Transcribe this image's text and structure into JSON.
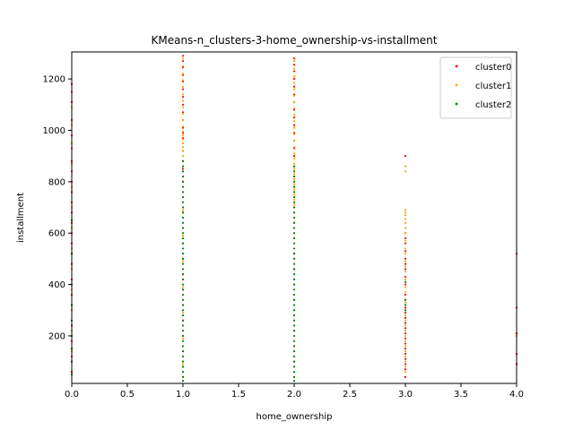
{
  "chart_data": {
    "type": "scatter",
    "title": "KMeans-n_clusters-3-home_ownership-vs-installment",
    "xlabel": "home_ownership",
    "ylabel": "installment",
    "xlim": [
      0.0,
      4.0
    ],
    "ylim": [
      15,
      1305
    ],
    "xticks": [
      "0.0",
      "0.5",
      "1.0",
      "1.5",
      "2.0",
      "2.5",
      "3.0",
      "3.5",
      "4.0"
    ],
    "yticks": [
      "200",
      "400",
      "600",
      "800",
      "1000",
      "1200"
    ],
    "legend_position": "top-right",
    "grid": false,
    "series": [
      {
        "name": "cluster0",
        "color": "#ff0000",
        "points": [
          [
            0,
            1180
          ],
          [
            0,
            1150
          ],
          [
            0,
            1110
          ],
          [
            0,
            1040
          ],
          [
            0,
            980
          ],
          [
            0,
            930
          ],
          [
            0,
            880
          ],
          [
            0,
            840
          ],
          [
            0,
            800
          ],
          [
            0,
            760
          ],
          [
            0,
            720
          ],
          [
            0,
            680
          ],
          [
            0,
            640
          ],
          [
            0,
            600
          ],
          [
            0,
            560
          ],
          [
            0,
            520
          ],
          [
            0,
            480
          ],
          [
            0,
            420
          ],
          [
            0,
            360
          ],
          [
            0,
            300
          ],
          [
            0,
            240
          ],
          [
            0,
            180
          ],
          [
            0,
            120
          ],
          [
            0,
            60
          ],
          [
            1,
            1290
          ],
          [
            1,
            1270
          ],
          [
            1,
            1245
          ],
          [
            1,
            1215
          ],
          [
            1,
            1190
          ],
          [
            1,
            1160
          ],
          [
            1,
            1130
          ],
          [
            1,
            1100
          ],
          [
            1,
            1070
          ],
          [
            1,
            1040
          ],
          [
            1,
            1010
          ],
          [
            1,
            990
          ],
          [
            1,
            970
          ],
          [
            1,
            950
          ],
          [
            1,
            920
          ],
          [
            1,
            880
          ],
          [
            1,
            850
          ],
          [
            1,
            800
          ],
          [
            1,
            740
          ],
          [
            1,
            680
          ],
          [
            1,
            620
          ],
          [
            1,
            560
          ],
          [
            1,
            500
          ],
          [
            1,
            440
          ],
          [
            1,
            380
          ],
          [
            1,
            320
          ],
          [
            1,
            260
          ],
          [
            1,
            200
          ],
          [
            1,
            140
          ],
          [
            1,
            80
          ],
          [
            1,
            40
          ],
          [
            2,
            1280
          ],
          [
            2,
            1255
          ],
          [
            2,
            1230
          ],
          [
            2,
            1200
          ],
          [
            2,
            1170
          ],
          [
            2,
            1140
          ],
          [
            2,
            1110
          ],
          [
            2,
            1080
          ],
          [
            2,
            1050
          ],
          [
            2,
            1020
          ],
          [
            2,
            990
          ],
          [
            2,
            960
          ],
          [
            2,
            930
          ],
          [
            2,
            900
          ],
          [
            2,
            860
          ],
          [
            2,
            820
          ],
          [
            2,
            780
          ],
          [
            2,
            740
          ],
          [
            2,
            700
          ],
          [
            2,
            640
          ],
          [
            2,
            580
          ],
          [
            2,
            520
          ],
          [
            2,
            460
          ],
          [
            2,
            400
          ],
          [
            2,
            340
          ],
          [
            2,
            280
          ],
          [
            2,
            220
          ],
          [
            2,
            160
          ],
          [
            2,
            100
          ],
          [
            2,
            40
          ],
          [
            3,
            900
          ],
          [
            3,
            600
          ],
          [
            3,
            580
          ],
          [
            3,
            560
          ],
          [
            3,
            530
          ],
          [
            3,
            500
          ],
          [
            3,
            480
          ],
          [
            3,
            460
          ],
          [
            3,
            430
          ],
          [
            3,
            400
          ],
          [
            3,
            360
          ],
          [
            3,
            340
          ],
          [
            3,
            310
          ],
          [
            3,
            290
          ],
          [
            3,
            270
          ],
          [
            3,
            250
          ],
          [
            3,
            230
          ],
          [
            3,
            210
          ],
          [
            3,
            190
          ],
          [
            3,
            170
          ],
          [
            3,
            150
          ],
          [
            3,
            130
          ],
          [
            3,
            110
          ],
          [
            3,
            90
          ],
          [
            3,
            70
          ],
          [
            3,
            40
          ],
          [
            4,
            520
          ],
          [
            4,
            310
          ],
          [
            4,
            210
          ],
          [
            4,
            130
          ],
          [
            4,
            90
          ]
        ]
      },
      {
        "name": "cluster1",
        "color": "#ffa500",
        "points": [
          [
            0,
            1090
          ],
          [
            0,
            1020
          ],
          [
            0,
            950
          ],
          [
            0,
            870
          ],
          [
            0,
            780
          ],
          [
            0,
            700
          ],
          [
            0,
            620
          ],
          [
            0,
            540
          ],
          [
            0,
            460
          ],
          [
            0,
            380
          ],
          [
            0,
            300
          ],
          [
            0,
            220
          ],
          [
            0,
            140
          ],
          [
            1,
            1280
          ],
          [
            1,
            1250
          ],
          [
            1,
            1220
          ],
          [
            1,
            1195
          ],
          [
            1,
            1170
          ],
          [
            1,
            1140
          ],
          [
            1,
            1115
          ],
          [
            1,
            1090
          ],
          [
            1,
            1065
          ],
          [
            1,
            1040
          ],
          [
            1,
            1015
          ],
          [
            1,
            995
          ],
          [
            1,
            980
          ],
          [
            1,
            965
          ],
          [
            1,
            950
          ],
          [
            1,
            935
          ],
          [
            1,
            920
          ],
          [
            1,
            900
          ],
          [
            1,
            860
          ],
          [
            1,
            780
          ],
          [
            1,
            690
          ],
          [
            1,
            590
          ],
          [
            1,
            490
          ],
          [
            1,
            390
          ],
          [
            1,
            290
          ],
          [
            1,
            190
          ],
          [
            1,
            90
          ],
          [
            2,
            1270
          ],
          [
            2,
            1240
          ],
          [
            2,
            1210
          ],
          [
            2,
            1185
          ],
          [
            2,
            1160
          ],
          [
            2,
            1135
          ],
          [
            2,
            1110
          ],
          [
            2,
            1085
          ],
          [
            2,
            1060
          ],
          [
            2,
            1035
          ],
          [
            2,
            1010
          ],
          [
            2,
            985
          ],
          [
            2,
            960
          ],
          [
            2,
            935
          ],
          [
            2,
            910
          ],
          [
            2,
            890
          ],
          [
            2,
            870
          ],
          [
            2,
            850
          ],
          [
            2,
            830
          ],
          [
            2,
            810
          ],
          [
            2,
            790
          ],
          [
            2,
            770
          ],
          [
            2,
            750
          ],
          [
            2,
            730
          ],
          [
            2,
            710
          ],
          [
            2,
            600
          ],
          [
            2,
            480
          ],
          [
            2,
            360
          ],
          [
            2,
            240
          ],
          [
            2,
            120
          ],
          [
            3,
            860
          ],
          [
            3,
            840
          ],
          [
            3,
            690
          ],
          [
            3,
            680
          ],
          [
            3,
            670
          ],
          [
            3,
            655
          ],
          [
            3,
            640
          ],
          [
            3,
            620
          ],
          [
            3,
            600
          ],
          [
            3,
            570
          ],
          [
            3,
            540
          ],
          [
            3,
            520
          ],
          [
            3,
            490
          ],
          [
            3,
            470
          ],
          [
            3,
            450
          ],
          [
            3,
            420
          ],
          [
            3,
            390
          ],
          [
            3,
            370
          ],
          [
            3,
            330
          ],
          [
            3,
            300
          ],
          [
            3,
            280
          ],
          [
            3,
            260
          ],
          [
            3,
            240
          ],
          [
            3,
            220
          ],
          [
            3,
            200
          ],
          [
            3,
            180
          ],
          [
            3,
            160
          ],
          [
            3,
            140
          ],
          [
            3,
            120
          ],
          [
            3,
            100
          ],
          [
            3,
            80
          ],
          [
            3,
            60
          ],
          [
            4,
            200
          ]
        ]
      },
      {
        "name": "cluster2",
        "color": "#008000",
        "points": [
          [
            0,
            650
          ],
          [
            0,
            520
          ],
          [
            0,
            400
          ],
          [
            0,
            320
          ],
          [
            0,
            260
          ],
          [
            0,
            200
          ],
          [
            0,
            150
          ],
          [
            0,
            100
          ],
          [
            0,
            50
          ],
          [
            1,
            880
          ],
          [
            1,
            860
          ],
          [
            1,
            840
          ],
          [
            1,
            820
          ],
          [
            1,
            800
          ],
          [
            1,
            780
          ],
          [
            1,
            760
          ],
          [
            1,
            740
          ],
          [
            1,
            720
          ],
          [
            1,
            700
          ],
          [
            1,
            680
          ],
          [
            1,
            660
          ],
          [
            1,
            640
          ],
          [
            1,
            620
          ],
          [
            1,
            600
          ],
          [
            1,
            580
          ],
          [
            1,
            560
          ],
          [
            1,
            540
          ],
          [
            1,
            520
          ],
          [
            1,
            500
          ],
          [
            1,
            480
          ],
          [
            1,
            460
          ],
          [
            1,
            440
          ],
          [
            1,
            420
          ],
          [
            1,
            400
          ],
          [
            1,
            380
          ],
          [
            1,
            360
          ],
          [
            1,
            340
          ],
          [
            1,
            320
          ],
          [
            1,
            300
          ],
          [
            1,
            280
          ],
          [
            1,
            260
          ],
          [
            1,
            240
          ],
          [
            1,
            220
          ],
          [
            1,
            200
          ],
          [
            1,
            180
          ],
          [
            1,
            160
          ],
          [
            1,
            140
          ],
          [
            1,
            120
          ],
          [
            1,
            100
          ],
          [
            1,
            80
          ],
          [
            1,
            60
          ],
          [
            1,
            40
          ],
          [
            1,
            25
          ],
          [
            2,
            860
          ],
          [
            2,
            840
          ],
          [
            2,
            820
          ],
          [
            2,
            800
          ],
          [
            2,
            780
          ],
          [
            2,
            760
          ],
          [
            2,
            740
          ],
          [
            2,
            720
          ],
          [
            2,
            700
          ],
          [
            2,
            680
          ],
          [
            2,
            660
          ],
          [
            2,
            640
          ],
          [
            2,
            620
          ],
          [
            2,
            600
          ],
          [
            2,
            580
          ],
          [
            2,
            560
          ],
          [
            2,
            540
          ],
          [
            2,
            520
          ],
          [
            2,
            500
          ],
          [
            2,
            480
          ],
          [
            2,
            460
          ],
          [
            2,
            440
          ],
          [
            2,
            420
          ],
          [
            2,
            400
          ],
          [
            2,
            380
          ],
          [
            2,
            360
          ],
          [
            2,
            340
          ],
          [
            2,
            320
          ],
          [
            2,
            300
          ],
          [
            2,
            280
          ],
          [
            2,
            260
          ],
          [
            2,
            240
          ],
          [
            2,
            220
          ],
          [
            2,
            200
          ],
          [
            2,
            180
          ],
          [
            2,
            160
          ],
          [
            2,
            140
          ],
          [
            2,
            120
          ],
          [
            2,
            100
          ],
          [
            2,
            80
          ],
          [
            2,
            60
          ],
          [
            2,
            40
          ],
          [
            2,
            25
          ],
          [
            3,
            410
          ],
          [
            3,
            340
          ],
          [
            3,
            320
          ],
          [
            3,
            300
          ]
        ]
      }
    ]
  }
}
